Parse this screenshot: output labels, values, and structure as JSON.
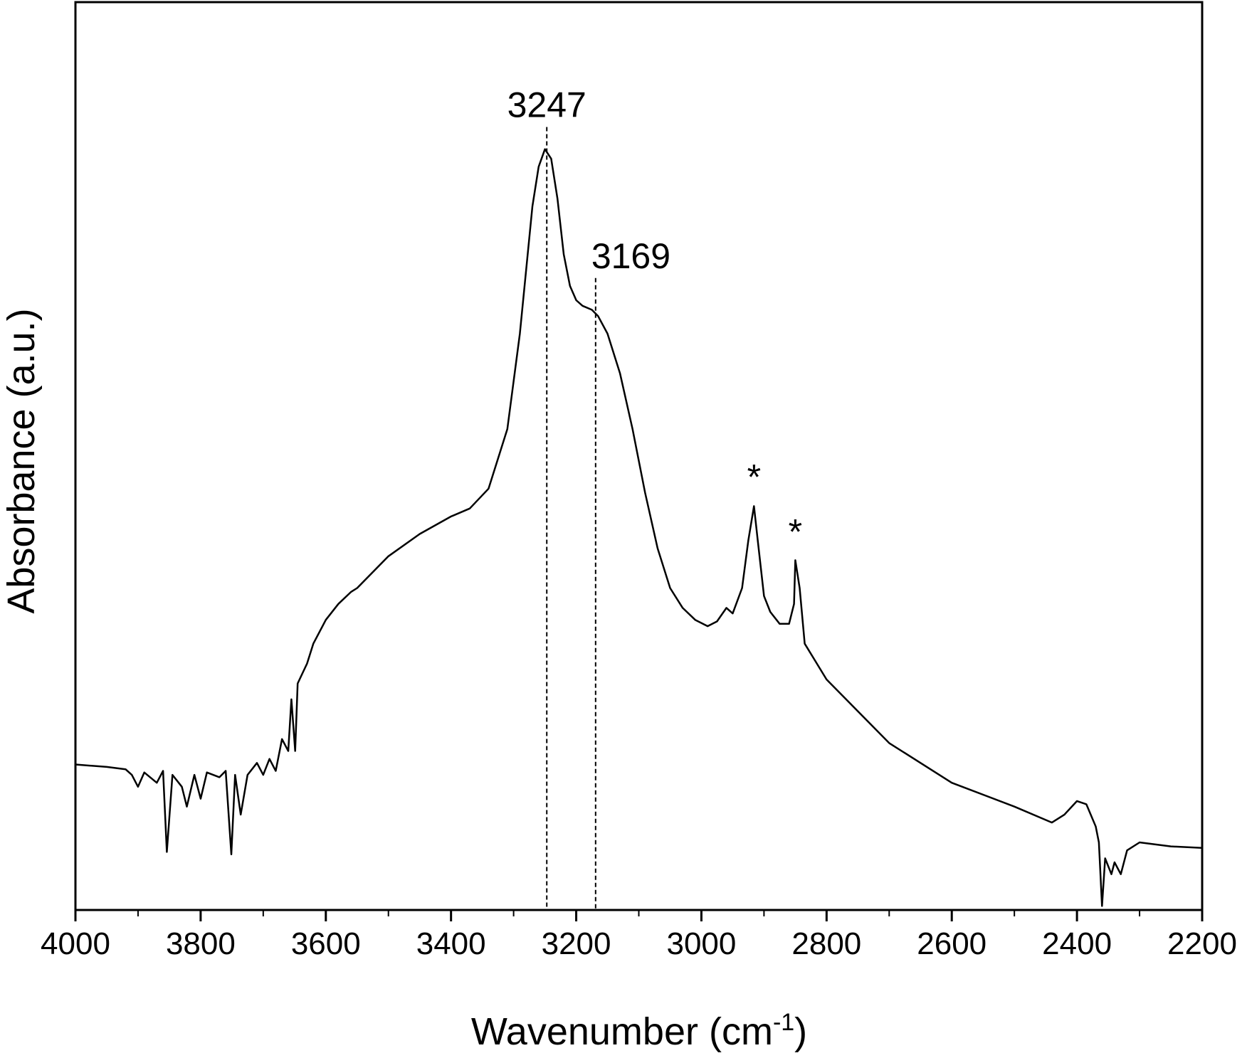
{
  "chart_data": {
    "type": "line",
    "xlabel": {
      "text": "Wavenumber (cm",
      "superscript": "-1",
      "suffix": ")"
    },
    "ylabel": "Absorbance (a.u.)",
    "xlim": [
      4000,
      2200
    ],
    "xticks": [
      4000,
      3800,
      3600,
      3400,
      3200,
      3000,
      2800,
      2600,
      2400,
      2200
    ],
    "xminorticks": [
      3900,
      3700,
      3500,
      3300,
      3100,
      2900,
      2700,
      2500,
      2300
    ],
    "ylim": [
      0,
      1142
    ],
    "color": "#000000",
    "x": [
      4000,
      3950,
      3920,
      3910,
      3900,
      3890,
      3870,
      3860,
      3854,
      3845,
      3830,
      3822,
      3810,
      3800,
      3790,
      3770,
      3760,
      3751,
      3745,
      3736,
      3725,
      3710,
      3700,
      3690,
      3680,
      3670,
      3660,
      3655,
      3649,
      3645,
      3630,
      3620,
      3600,
      3580,
      3560,
      3550,
      3500,
      3450,
      3400,
      3370,
      3340,
      3310,
      3290,
      3270,
      3260,
      3250,
      3240,
      3230,
      3220,
      3210,
      3200,
      3190,
      3175,
      3165,
      3150,
      3130,
      3110,
      3090,
      3070,
      3050,
      3030,
      3010,
      2990,
      2975,
      2960,
      2950,
      2935,
      2925,
      2916,
      2910,
      2900,
      2890,
      2875,
      2860,
      2852,
      2850,
      2843,
      2835,
      2800,
      2700,
      2600,
      2500,
      2440,
      2420,
      2400,
      2385,
      2370,
      2365,
      2360,
      2355,
      2345,
      2340,
      2330,
      2320,
      2300,
      2250,
      2200
    ],
    "values": [
      183,
      180,
      177,
      170,
      155,
      173,
      160,
      175,
      73,
      170,
      155,
      130,
      170,
      140,
      173,
      167,
      175,
      70,
      170,
      120,
      170,
      185,
      170,
      190,
      175,
      215,
      200,
      265,
      200,
      285,
      310,
      335,
      365,
      385,
      400,
      405,
      445,
      473,
      495,
      505,
      530,
      605,
      725,
      885,
      935,
      957,
      945,
      895,
      825,
      785,
      767,
      760,
      755,
      747,
      725,
      675,
      605,
      525,
      455,
      405,
      380,
      365,
      357,
      363,
      380,
      373,
      405,
      465,
      508,
      465,
      395,
      375,
      360,
      360,
      385,
      440,
      405,
      335,
      290,
      210,
      160,
      130,
      110,
      120,
      137,
      133,
      105,
      85,
      5,
      65,
      45,
      60,
      45,
      75,
      85,
      80,
      78
    ],
    "annotations": [
      {
        "text": "3247",
        "x": 3247,
        "y": 1010,
        "line": true
      },
      {
        "text": "3169",
        "x": 3169,
        "y": 820,
        "line": true
      },
      {
        "text": "*",
        "x": 2916,
        "y": 542,
        "line": false
      },
      {
        "text": "*",
        "x": 2850,
        "y": 473,
        "line": false
      }
    ]
  }
}
